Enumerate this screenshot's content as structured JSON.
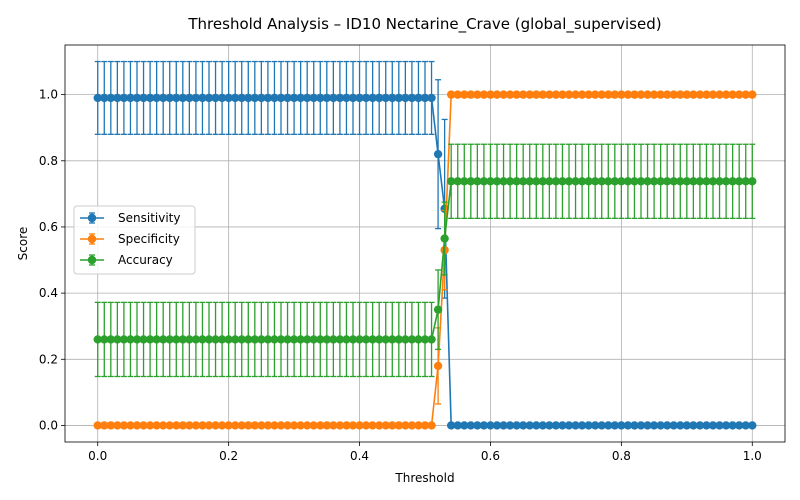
{
  "chart_data": {
    "type": "line",
    "title": "Threshold Analysis – ID10 Nectarine_Crave (global_supervised)",
    "xlabel": "Threshold",
    "ylabel": "Score",
    "xlim": [
      -0.05,
      1.05
    ],
    "ylim": [
      -0.05,
      1.15
    ],
    "xticks": [
      0.0,
      0.2,
      0.4,
      0.6,
      0.8,
      1.0
    ],
    "xtick_labels": [
      "0.0",
      "0.2",
      "0.4",
      "0.6",
      "0.8",
      "1.0"
    ],
    "yticks": [
      0.0,
      0.2,
      0.4,
      0.6,
      0.8,
      1.0
    ],
    "ytick_labels": [
      "0.0",
      "0.2",
      "0.4",
      "0.6",
      "0.8",
      "1.0"
    ],
    "grid": true,
    "legend_position": "center-left",
    "x": {
      "start": 0.0,
      "stop": 1.0,
      "count": 101
    },
    "series": [
      {
        "name": "Sensitivity",
        "color": "#1f77b4",
        "segments": [
          {
            "from": 0.0,
            "to": 0.51,
            "y": 0.99,
            "err": 0.11
          },
          {
            "at": 0.52,
            "y": 0.82,
            "err": 0.225
          },
          {
            "at": 0.53,
            "y": 0.655,
            "err": 0.27
          },
          {
            "from": 0.54,
            "to": 1.0,
            "y": 0.0,
            "err": 0.0
          }
        ]
      },
      {
        "name": "Specificity",
        "color": "#ff7f0e",
        "segments": [
          {
            "from": 0.0,
            "to": 0.51,
            "y": 0.0,
            "err": 0.0
          },
          {
            "at": 0.52,
            "y": 0.18,
            "err": 0.115
          },
          {
            "at": 0.53,
            "y": 0.53,
            "err": 0.12
          },
          {
            "from": 0.54,
            "to": 1.0,
            "y": 1.0,
            "err": 0.0
          }
        ]
      },
      {
        "name": "Accuracy",
        "color": "#2ca02c",
        "segments": [
          {
            "from": 0.0,
            "to": 0.51,
            "y": 0.26,
            "err": 0.112
          },
          {
            "at": 0.52,
            "y": 0.35,
            "err": 0.12
          },
          {
            "at": 0.53,
            "y": 0.565,
            "err": 0.11
          },
          {
            "from": 0.54,
            "to": 1.0,
            "y": 0.738,
            "err": 0.112
          }
        ]
      }
    ]
  }
}
